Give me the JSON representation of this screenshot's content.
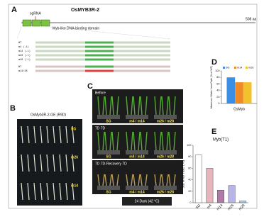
{
  "panel_a": {
    "label": "A",
    "gene": "OsMYB3R-2",
    "sgrna": "sgRNA",
    "domain": "Myb-like DNA-binding domain",
    "length": "508 aa",
    "seq_rows": [
      "WT",
      "m4 (-1)",
      "m14 (-1)",
      "m26 (-1)",
      "m28 (-1)",
      "WT",
      "m14/28"
    ]
  },
  "panel_b": {
    "label": "B",
    "title": "OsMyb3R-2-GE (R9D)",
    "rows": [
      "SG",
      "m26",
      "m14"
    ]
  },
  "panel_c": {
    "label": "C",
    "stages": [
      "Before",
      "7D 7D",
      "7D 7D-Recovery 7D"
    ],
    "groups": [
      "SG",
      "m4 / m14",
      "m26 / m28"
    ],
    "footer": "24 Dark (42 °C)"
  },
  "chart_data": [
    {
      "type": "bar",
      "label": "D",
      "ylabel": "Maximum Water Loss Rate (% of WT)",
      "categories": [
        "OsMyb"
      ],
      "series": [
        {
          "name": "SG",
          "color": "#3a8ee6",
          "values": [
            80
          ]
        },
        {
          "name": "m14",
          "color": "#f08a24",
          "values": [
            65
          ]
        },
        {
          "name": "m26",
          "color": "#f2c12e",
          "values": [
            65
          ]
        }
      ],
      "ylim": [
        0,
        100
      ],
      "yticks": [
        0,
        20,
        40,
        60,
        80,
        100
      ]
    },
    {
      "type": "bar",
      "label": "E",
      "title": "Myb(T1)",
      "ylabel": "survival rate (%)",
      "categories": [
        "SG",
        "m4",
        "m14",
        "m26",
        "m28"
      ],
      "values": [
        83,
        60,
        22,
        30,
        3
      ],
      "colors": [
        "#ffffff",
        "#e8b4bc",
        "#b07aa8",
        "#b9b4e6",
        "#a9cbe8"
      ],
      "ylim": [
        0,
        100
      ],
      "yticks": [
        0,
        20,
        40,
        60,
        80,
        100
      ]
    }
  ]
}
